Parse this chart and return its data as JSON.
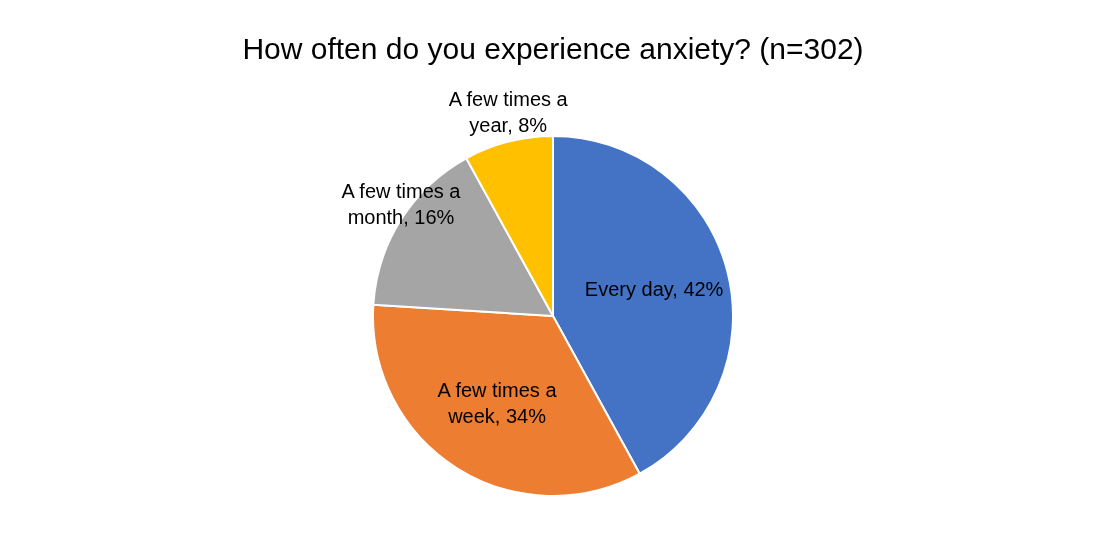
{
  "chart_data": {
    "type": "pie",
    "title": "How often do you experience anxiety? (n=302)",
    "categories": [
      "Every day, 42%",
      "A few times a week, 34%",
      "A few times a month, 16%",
      "A few times a year, 8%"
    ],
    "values": [
      42,
      34,
      16,
      8
    ],
    "colors": [
      "#4472c4",
      "#ed7d31",
      "#a5a5a5",
      "#ffc000"
    ],
    "legend": false
  }
}
